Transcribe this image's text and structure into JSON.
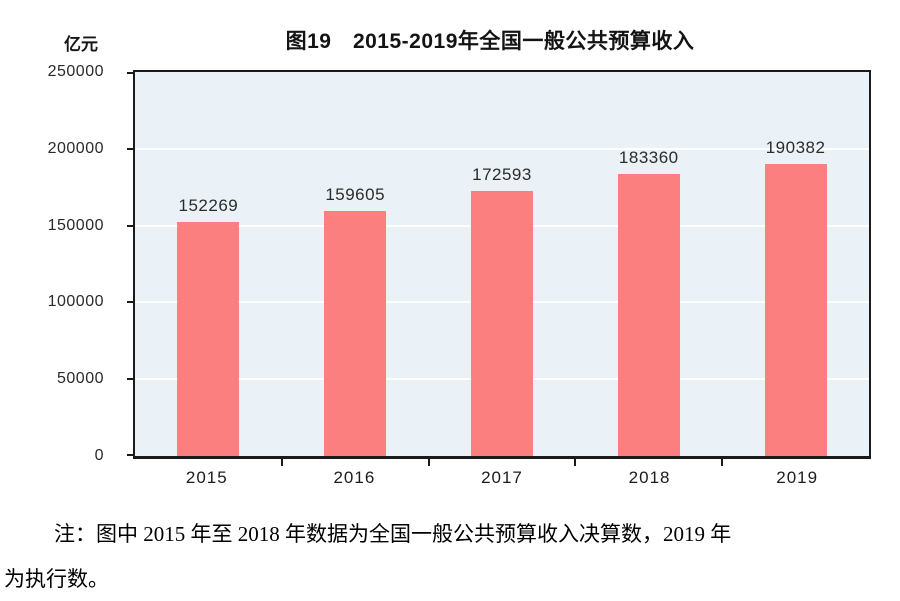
{
  "chart_data": {
    "type": "bar",
    "title": "图19　2015-2019年全国一般公共预算收入",
    "unit_label": "亿元",
    "categories": [
      "2015",
      "2016",
      "2017",
      "2018",
      "2019"
    ],
    "values": [
      152269,
      159605,
      172593,
      183360,
      190382
    ],
    "data_labels": [
      "152269",
      "159605",
      "172593",
      "183360",
      "190382"
    ],
    "ylim": [
      0,
      250000
    ],
    "ytick_interval": 50000,
    "yticks": [
      "0",
      "50000",
      "100000",
      "150000",
      "200000",
      "250000"
    ],
    "grid": "horizontal",
    "legend_position": "none"
  },
  "note": {
    "lines": [
      "注：图中 2015 年至 2018 年数据为全国一般公共预算收入决算数，2019 年",
      "为执行数。"
    ]
  },
  "colors": {
    "bar_fill": "#fb7f7f",
    "plot_background": "#ebf2f7",
    "gridline": "#ffffff",
    "axis": "#1a1a1a",
    "page_background": "#ffffff"
  }
}
